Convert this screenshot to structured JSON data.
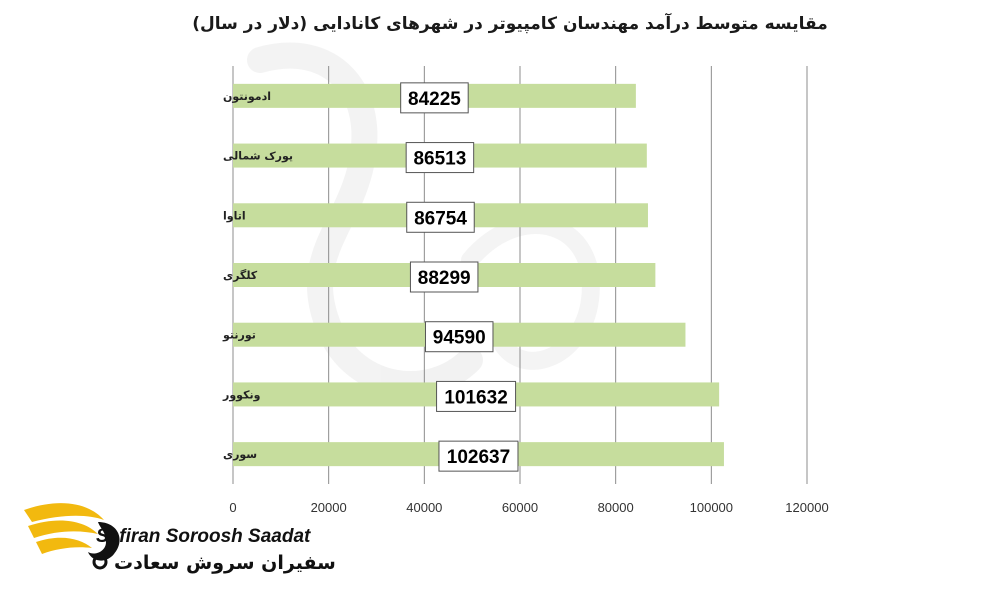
{
  "chart_data": {
    "type": "bar",
    "orientation": "horizontal",
    "title": "مقایسه متوسط درآمد مهندسان کامپیوتر در شهرهای کانادایی (دلار در سال)",
    "categories": [
      "ادمونتون",
      "یورک شمالی",
      "اتاوا",
      "کلگری",
      "تورنتو",
      "ونکوور",
      "سوری"
    ],
    "values": [
      84225,
      86513,
      86754,
      88299,
      94590,
      101632,
      102637
    ],
    "data_labels": [
      "84225",
      "86513",
      "86754",
      "88299",
      "94590",
      "101632",
      "102637"
    ],
    "xlim": [
      0,
      120000
    ],
    "xticks": [
      "0",
      "20000",
      "40000",
      "60000",
      "80000",
      "100000",
      "120000"
    ],
    "grid": true,
    "bar_color": "#c6dd9d",
    "xlabel": "",
    "ylabel": ""
  },
  "brand": {
    "latin": "Safiran Soroosh Saadat",
    "persian": "سفیران سروش سعادت",
    "accent_color": "#f2b90f"
  }
}
